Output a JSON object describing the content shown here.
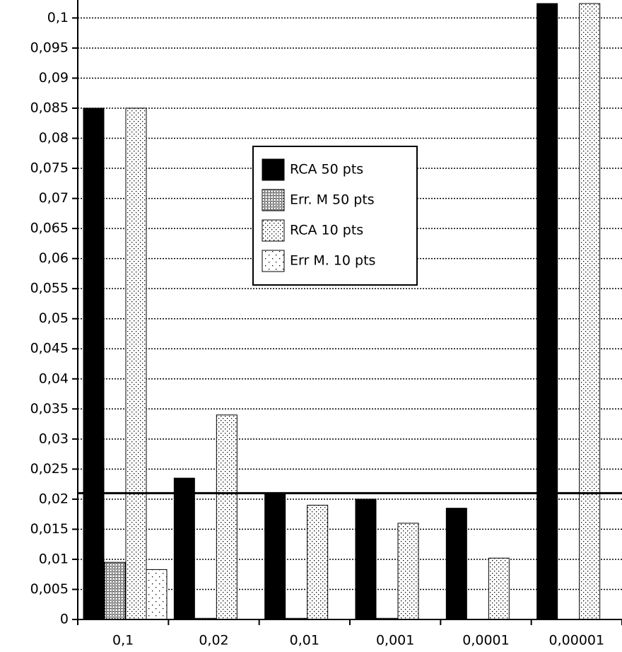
{
  "chart_data": {
    "type": "bar",
    "categories": [
      "0,1",
      "0,02",
      "0,01",
      "0,001",
      "0,0001",
      "0,00001"
    ],
    "series": [
      {
        "name": "RCA 50 pts",
        "color": "#000000",
        "pattern": "solid",
        "values": [
          0.085,
          0.0235,
          0.021,
          0.02,
          0.0185,
          0.1024
        ]
      },
      {
        "name": "Err. M 50 pts",
        "color": "#000000",
        "pattern": "dense",
        "values": [
          0.0095,
          0.0002,
          0.0002,
          0.0002,
          0,
          0
        ]
      },
      {
        "name": "RCA 10 pts",
        "color": "#000000",
        "pattern": "medium",
        "values": [
          0.085,
          0.034,
          0.019,
          0.016,
          0.0102,
          0.1024
        ]
      },
      {
        "name": "Err M. 10 pts",
        "color": "#000000",
        "pattern": "sparse",
        "values": [
          0.0083,
          0,
          0,
          0,
          0,
          0
        ]
      }
    ],
    "ylim": [
      0,
      0.1024
    ],
    "yticks": [
      0,
      {
        "value": 0.005,
        "label": "0,005"
      },
      {
        "value": 0.01,
        "label": "0,01"
      },
      {
        "value": 0.015,
        "label": "0,015"
      },
      {
        "value": 0.02,
        "label": "0,02"
      },
      {
        "value": 0.025,
        "label": "0,025"
      },
      {
        "value": 0.03,
        "label": "0,03"
      },
      {
        "value": 0.035,
        "label": "0,035"
      },
      {
        "value": 0.04,
        "label": "0,04"
      },
      {
        "value": 0.045,
        "label": "0,045"
      },
      {
        "value": 0.05,
        "label": "0,05"
      },
      {
        "value": 0.055,
        "label": "0,055"
      },
      {
        "value": 0.06,
        "label": "0,06"
      },
      {
        "value": 0.065,
        "label": "0,065"
      },
      {
        "value": 0.07,
        "label": "0,07"
      },
      {
        "value": 0.075,
        "label": "0,075"
      },
      {
        "value": 0.08,
        "label": "0,08"
      },
      {
        "value": 0.085,
        "label": "0,085"
      },
      {
        "value": 0.09,
        "label": "0,09"
      },
      {
        "value": 0.095,
        "label": "0,095"
      },
      {
        "value": 0.1,
        "label": "0,1"
      }
    ],
    "grid": true,
    "reference_line": 0.021
  }
}
